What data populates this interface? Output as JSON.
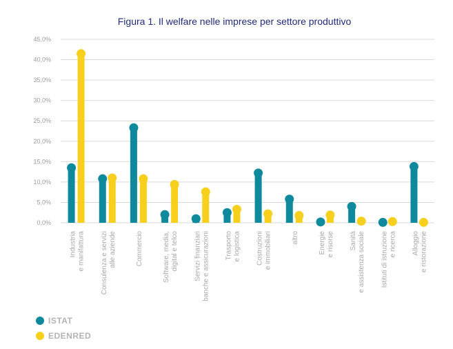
{
  "chart_data": {
    "type": "bar",
    "title": "Figura 1. Il welfare nelle imprese per settore produttivo",
    "xlabel": "",
    "ylabel": "",
    "ylim": [
      0,
      45
    ],
    "yticks": [
      "0,0%",
      "5,0%",
      "10,0%",
      "15,0%",
      "20,0%",
      "25,0%",
      "30,0%",
      "35,0%",
      "40,0%",
      "45,0%"
    ],
    "categories": [
      [
        "Industria",
        "e manifattura"
      ],
      [
        "Consulenza e servizi",
        "alle aziende"
      ],
      [
        "Commercio"
      ],
      [
        "Software, media,",
        "digital e telco"
      ],
      [
        "Servizi finanziari",
        "banche e assicurazioni"
      ],
      [
        "Trasporto",
        "e logistica"
      ],
      [
        "Costruzioni",
        "e immobiliari"
      ],
      [
        "altro"
      ],
      [
        "Energie",
        "e risorse"
      ],
      [
        "Sanità",
        "e assistenza sociale"
      ],
      [
        "Istituti di istruzione",
        "e ricerca"
      ],
      [
        "Alloggio",
        "e ristorazione"
      ]
    ],
    "series": [
      {
        "name": "ISTAT",
        "color": "#0e8a9c",
        "values": [
          13.5,
          10.8,
          23.3,
          2.0,
          1.0,
          2.5,
          12.2,
          5.8,
          0.2,
          4.0,
          0.1,
          13.8
        ]
      },
      {
        "name": "EDENRED",
        "color": "#f7d01e",
        "values": [
          41.5,
          11.0,
          10.8,
          9.4,
          7.6,
          3.3,
          2.2,
          1.8,
          1.9,
          0.4,
          0.3,
          0.1
        ]
      }
    ],
    "grid": true,
    "legend": "bottom-left"
  }
}
